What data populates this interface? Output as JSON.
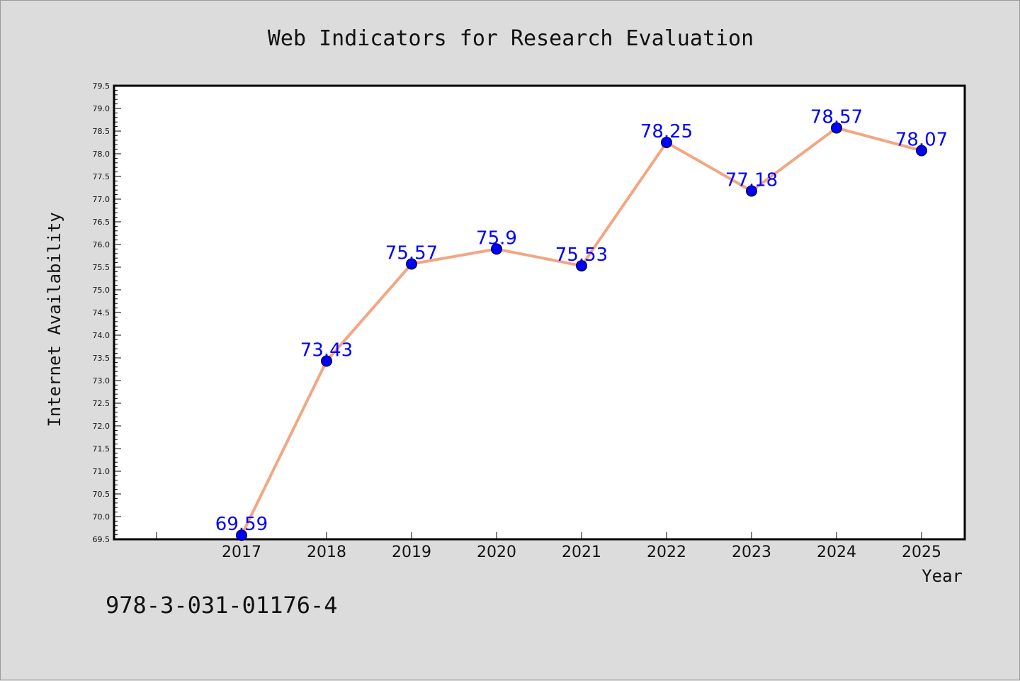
{
  "chart_data": {
    "type": "line",
    "title": "Web Indicators for Research Evaluation",
    "xlabel": "Year",
    "ylabel": "Internet Availability",
    "categories": [
      "2017",
      "2018",
      "2019",
      "2020",
      "2021",
      "2022",
      "2023",
      "2024",
      "2025"
    ],
    "series": [
      {
        "values": [
          69.59,
          73.43,
          75.57,
          75.9,
          75.53,
          78.25,
          77.18,
          78.57,
          78.07
        ],
        "data_labels": [
          "69.59",
          "73.43",
          "75.57",
          "75.9",
          "75.53",
          "78.25",
          "77.18",
          "78.57",
          "78.07"
        ],
        "line_color": "#f4a582",
        "marker_color": "#0000ff"
      }
    ],
    "ylim": [
      69.5,
      79.5
    ],
    "yticks": [
      "69.5",
      "70.0",
      "70.5",
      "71.0",
      "71.5",
      "72.0",
      "72.5",
      "73.0",
      "73.5",
      "74.0",
      "74.5",
      "75.0",
      "75.5",
      "76.0",
      "76.5",
      "77.0",
      "77.5",
      "78.0",
      "78.5",
      "79.0",
      "79.5"
    ],
    "grid": false,
    "legend": "none"
  },
  "footer_text": "978-3-031-01176-4",
  "colors": {
    "background": "#dcdcdc",
    "plot_background": "#ffffff",
    "label": "#0000ff"
  }
}
